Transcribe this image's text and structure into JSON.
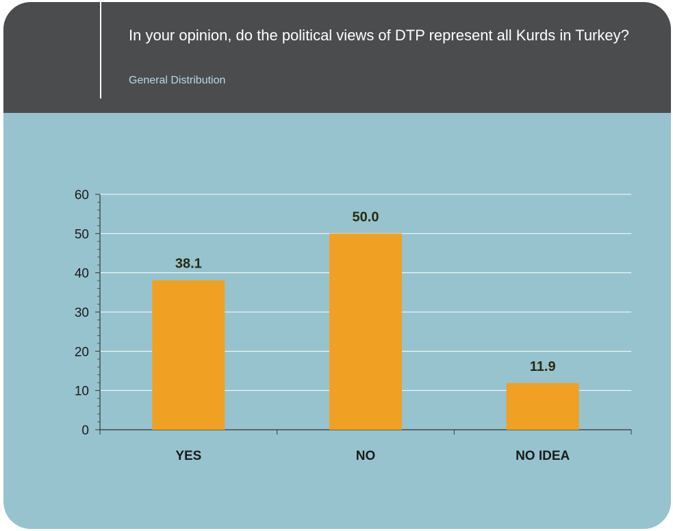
{
  "header": {
    "title": "In your opinion, do the political views of DTP represent all Kurds in Turkey?",
    "subtitle": "General Distribution"
  },
  "colors": {
    "header_bg": "#4b4c4e",
    "plot_bg": "#97c3cf",
    "bar": "#f0a023",
    "gridline": "#ffffff",
    "subtitle": "#b7dbe6"
  },
  "chart_data": {
    "type": "bar",
    "categories": [
      "YES",
      "NO",
      "NO IDEA"
    ],
    "values": [
      38.1,
      50.0,
      11.9
    ],
    "value_labels": [
      "38.1",
      "50.0",
      "11.9"
    ],
    "ylim": [
      0,
      60
    ],
    "yticks": [
      "0",
      "10",
      "20",
      "30",
      "40",
      "50",
      "60"
    ],
    "grid": true,
    "xlabel": "",
    "ylabel": ""
  }
}
